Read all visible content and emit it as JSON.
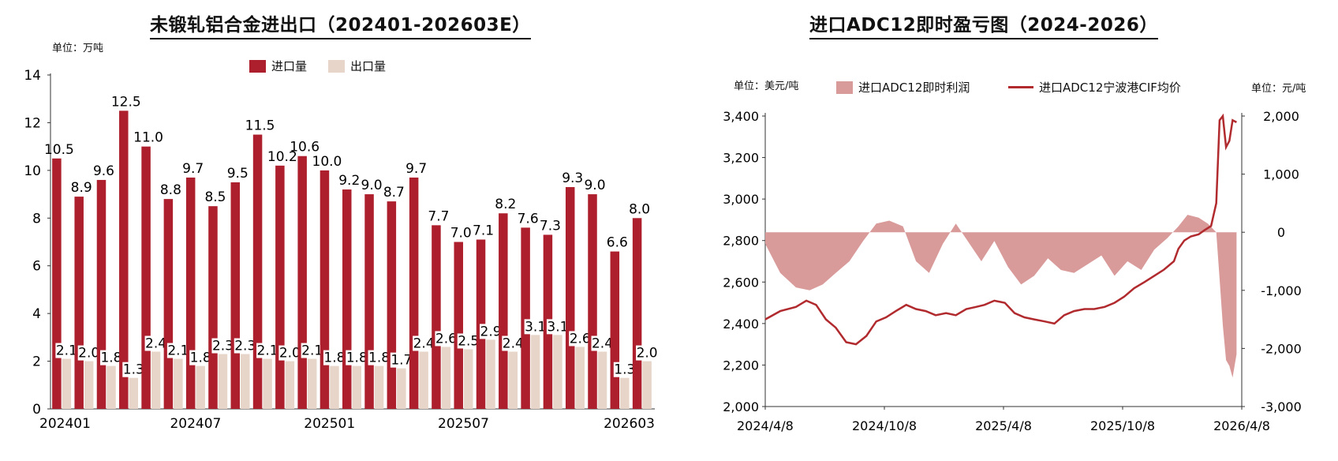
{
  "colors": {
    "import": "#ad1f2c",
    "export": "#e6d5c8",
    "profit": "#d99a9a",
    "price": "#b02a2e",
    "axis": "#333333"
  },
  "left_chart": {
    "title": "未锻轧铝合金进出口（202401-202603E）",
    "unit": "单位：万吨",
    "legend_import": "进口量",
    "legend_export": "出口量"
  },
  "right_chart": {
    "title": "进口ADC12即时盈亏图（2024-2026）",
    "unit_left": "单位：美元/吨",
    "unit_right": "单位：元/吨",
    "legend_profit": "进口ADC12即时利润",
    "legend_price": "进口ADC12宁波港CIF均价"
  },
  "chart_data": [
    {
      "type": "bar",
      "categories": [
        "202401",
        "202402",
        "202403",
        "202404",
        "202405",
        "202406",
        "202407",
        "202408",
        "202409",
        "202410",
        "202411",
        "202412",
        "202501",
        "202502",
        "202503",
        "202504",
        "202505",
        "202506",
        "202507",
        "202508",
        "202509",
        "202510",
        "202511",
        "202512",
        "202601",
        "202602",
        "202603"
      ],
      "x_tick_labels": [
        "202401",
        "202407",
        "202501",
        "202507",
        "202603"
      ],
      "series": [
        {
          "name": "进口量",
          "values": [
            10.5,
            8.9,
            9.6,
            12.5,
            11.0,
            8.8,
            9.7,
            8.5,
            9.5,
            11.5,
            10.2,
            10.6,
            10.0,
            9.2,
            9.0,
            8.7,
            9.7,
            7.7,
            7.0,
            7.1,
            8.2,
            7.6,
            7.3,
            9.3,
            9.0,
            6.6,
            8.0
          ]
        },
        {
          "name": "出口量",
          "values": [
            2.1,
            2.0,
            1.8,
            1.3,
            2.4,
            2.1,
            1.8,
            2.3,
            2.3,
            2.1,
            2.0,
            2.1,
            1.8,
            1.8,
            1.8,
            1.7,
            2.4,
            2.6,
            2.5,
            2.9,
            2.4,
            3.1,
            3.1,
            2.6,
            2.4,
            1.3,
            2.0
          ]
        }
      ],
      "ylim": [
        0,
        14
      ],
      "yticks": [
        0,
        2,
        4,
        6,
        8,
        10,
        12,
        14
      ],
      "grid": false,
      "legend": "top"
    },
    {
      "type": "line",
      "x_tick_labels": [
        "2024/4/8",
        "2024/10/8",
        "2025/4/8",
        "2025/10/8",
        "2026/4/8"
      ],
      "x_range": [
        "2024-04-08",
        "2026-04-08"
      ],
      "y_left": {
        "ylim": [
          2000,
          3400
        ],
        "yticks": [
          "2,000",
          "2,200",
          "2,400",
          "2,600",
          "2,800",
          "3,000",
          "3,200",
          "3,400"
        ]
      },
      "y_right": {
        "ylim": [
          -3000,
          2000
        ],
        "yticks": [
          "-3,000",
          "-2,000",
          "-1,000",
          "0",
          "1,000",
          "2,000"
        ]
      },
      "series": [
        {
          "name": "进口ADC12宁波港CIF均价",
          "axis": "left",
          "x": [
            "2024-04-08",
            "2024-05-01",
            "2024-05-25",
            "2024-06-10",
            "2024-06-25",
            "2024-07-10",
            "2024-07-25",
            "2024-08-10",
            "2024-08-25",
            "2024-09-10",
            "2024-09-25",
            "2024-10-10",
            "2024-10-25",
            "2024-11-10",
            "2024-11-25",
            "2024-12-10",
            "2024-12-25",
            "2025-01-10",
            "2025-01-25",
            "2025-02-10",
            "2025-02-25",
            "2025-03-10",
            "2025-03-25",
            "2025-04-10",
            "2025-04-25",
            "2025-05-10",
            "2025-05-25",
            "2025-06-10",
            "2025-06-25",
            "2025-07-10",
            "2025-07-25",
            "2025-08-10",
            "2025-08-25",
            "2025-09-10",
            "2025-09-25",
            "2025-10-10",
            "2025-10-25",
            "2025-11-10",
            "2025-11-25",
            "2025-12-10",
            "2025-12-25",
            "2026-01-01",
            "2026-01-10",
            "2026-01-20",
            "2026-02-01",
            "2026-02-10",
            "2026-02-20",
            "2026-02-28",
            "2026-03-05",
            "2026-03-10",
            "2026-03-15",
            "2026-03-20",
            "2026-03-25",
            "2026-03-31"
          ],
          "values": [
            2420,
            2460,
            2480,
            2510,
            2490,
            2420,
            2380,
            2310,
            2300,
            2340,
            2410,
            2430,
            2460,
            2490,
            2470,
            2460,
            2440,
            2450,
            2440,
            2470,
            2480,
            2490,
            2510,
            2500,
            2450,
            2430,
            2420,
            2410,
            2400,
            2440,
            2460,
            2470,
            2470,
            2480,
            2500,
            2530,
            2570,
            2600,
            2630,
            2660,
            2700,
            2760,
            2800,
            2820,
            2830,
            2850,
            2870,
            2980,
            3380,
            3400,
            3250,
            3280,
            3380,
            3370
          ]
        },
        {
          "name": "进口ADC12即时利润",
          "axis": "right",
          "x": [
            "2024-04-08",
            "2024-05-01",
            "2024-05-25",
            "2024-06-15",
            "2024-07-05",
            "2024-07-25",
            "2024-08-15",
            "2024-09-05",
            "2024-09-25",
            "2024-10-15",
            "2024-11-05",
            "2024-11-25",
            "2024-12-15",
            "2025-01-05",
            "2025-01-25",
            "2025-02-15",
            "2025-03-05",
            "2025-03-25",
            "2025-04-15",
            "2025-05-05",
            "2025-05-25",
            "2025-06-15",
            "2025-07-05",
            "2025-07-25",
            "2025-08-15",
            "2025-09-05",
            "2025-09-25",
            "2025-10-15",
            "2025-11-05",
            "2025-11-25",
            "2025-12-15",
            "2026-01-01",
            "2026-01-15",
            "2026-02-01",
            "2026-02-15",
            "2026-02-28",
            "2026-03-05",
            "2026-03-10",
            "2026-03-15",
            "2026-03-20",
            "2026-03-25",
            "2026-03-31"
          ],
          "values": [
            -200,
            -700,
            -950,
            -1000,
            -900,
            -700,
            -500,
            -150,
            150,
            200,
            100,
            -500,
            -700,
            -200,
            150,
            -200,
            -500,
            -150,
            -600,
            -900,
            -750,
            -450,
            -650,
            -700,
            -550,
            -400,
            -750,
            -500,
            -650,
            -300,
            -100,
            100,
            300,
            250,
            150,
            0,
            -800,
            -1600,
            -2200,
            -2300,
            -2500,
            -2100
          ]
        }
      ],
      "grid": false,
      "legend": "top"
    }
  ]
}
